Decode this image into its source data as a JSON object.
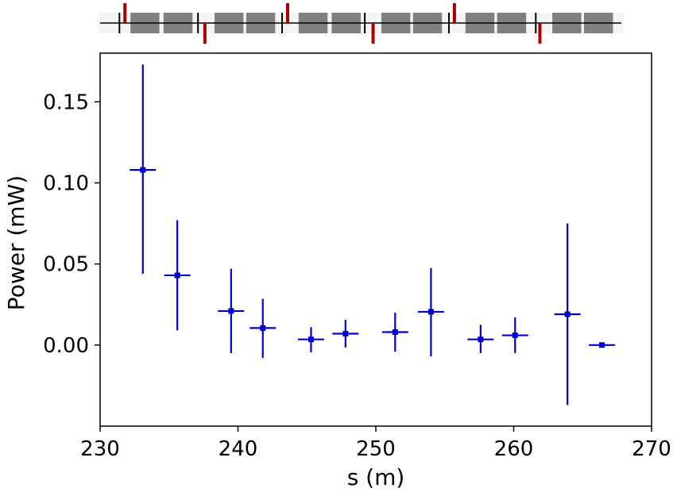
{
  "chart_data": {
    "type": "scatter",
    "title": "",
    "xlabel": "s   (m)",
    "ylabel": "Power   (mW)",
    "xlim": [
      230,
      270
    ],
    "ylim": [
      -0.05,
      0.18
    ],
    "xticks": [
      230,
      240,
      250,
      260,
      270
    ],
    "xtick_labels": [
      "230",
      "240",
      "250",
      "260",
      "270"
    ],
    "yticks": [
      0.0,
      0.05,
      0.1,
      0.15
    ],
    "ytick_labels": [
      "0.00",
      "0.05",
      "0.10",
      "0.15"
    ],
    "grid": false,
    "series": [
      {
        "color": "#0000cc",
        "points": [
          {
            "x": 233.1,
            "y": 0.108,
            "xerr": 0.95,
            "yerr_low": 0.064,
            "yerr_high": 0.065
          },
          {
            "x": 235.6,
            "y": 0.043,
            "xerr": 0.95,
            "yerr_low": 0.034,
            "yerr_high": 0.034
          },
          {
            "x": 239.5,
            "y": 0.021,
            "xerr": 0.95,
            "yerr_low": 0.026,
            "yerr_high": 0.026
          },
          {
            "x": 241.8,
            "y": 0.0105,
            "xerr": 0.95,
            "yerr_low": 0.0185,
            "yerr_high": 0.018
          },
          {
            "x": 245.3,
            "y": 0.0035,
            "xerr": 0.95,
            "yerr_low": 0.008,
            "yerr_high": 0.0075
          },
          {
            "x": 247.8,
            "y": 0.007,
            "xerr": 0.95,
            "yerr_low": 0.0085,
            "yerr_high": 0.0085
          },
          {
            "x": 251.4,
            "y": 0.008,
            "xerr": 0.95,
            "yerr_low": 0.012,
            "yerr_high": 0.012
          },
          {
            "x": 254.0,
            "y": 0.0205,
            "xerr": 0.95,
            "yerr_low": 0.0275,
            "yerr_high": 0.027
          },
          {
            "x": 257.6,
            "y": 0.0035,
            "xerr": 0.95,
            "yerr_low": 0.0085,
            "yerr_high": 0.009
          },
          {
            "x": 260.1,
            "y": 0.006,
            "xerr": 0.95,
            "yerr_low": 0.011,
            "yerr_high": 0.011
          },
          {
            "x": 263.9,
            "y": 0.019,
            "xerr": 0.95,
            "yerr_low": 0.056,
            "yerr_high": 0.056
          },
          {
            "x": 266.4,
            "y": 0.0,
            "xerr": 0.95,
            "yerr_low": 0.0,
            "yerr_high": 0.0
          }
        ]
      }
    ],
    "lattice_strip": {
      "line_color": "#000000",
      "block_color": "#808080",
      "marker_color": "#aa0000",
      "blocks": [
        [
          232.2,
          234.3
        ],
        [
          234.6,
          236.7
        ],
        [
          238.3,
          240.4
        ],
        [
          240.6,
          242.7
        ],
        [
          244.4,
          246.5
        ],
        [
          246.8,
          248.9
        ],
        [
          250.4,
          252.5
        ],
        [
          252.7,
          254.8
        ],
        [
          256.5,
          258.6
        ],
        [
          258.8,
          260.9
        ],
        [
          262.8,
          264.9
        ],
        [
          265.1,
          267.2
        ]
      ],
      "dividers": [
        231.4,
        237.1,
        243.2,
        249.2,
        255.3,
        261.6
      ],
      "red_up": [
        231.8,
        243.6,
        255.7
      ],
      "red_down": [
        237.6,
        249.8,
        261.9
      ]
    }
  }
}
